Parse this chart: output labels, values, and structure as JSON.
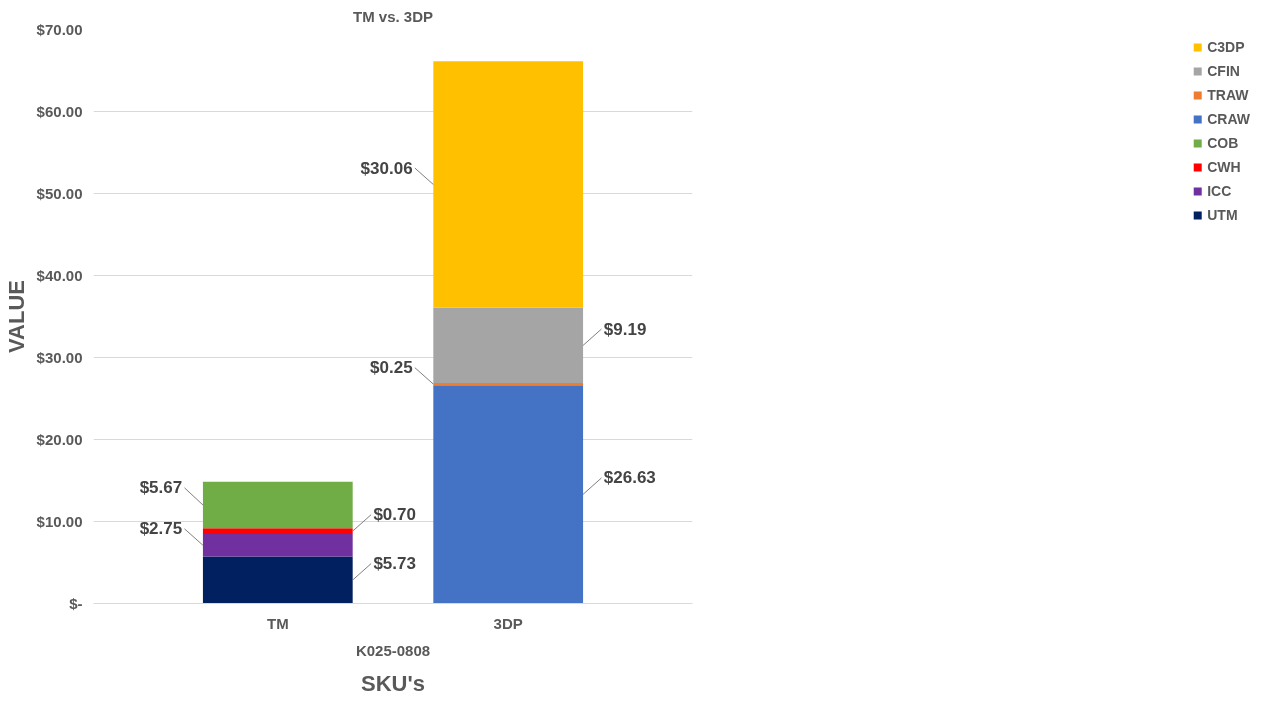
{
  "chart_data": {
    "type": "bar",
    "title": "TM vs. 3DP",
    "xlabel": "SKU's",
    "ylabel": "VALUE",
    "categories": [
      "TM",
      "3DP"
    ],
    "stacked": true,
    "annotations": [
      "K025-0808"
    ],
    "series": [
      {
        "name": "UTM",
        "color": "#002060",
        "values": [
          5.73,
          null
        ],
        "value_labels": [
          "$5.73",
          null
        ]
      },
      {
        "name": "ICC",
        "color": "#7030a0",
        "values": [
          2.75,
          null
        ],
        "value_labels": [
          "$2.75",
          null
        ]
      },
      {
        "name": "CWH",
        "color": "#ff0000",
        "values": [
          0.7,
          null
        ],
        "value_labels": [
          "$0.70",
          null
        ]
      },
      {
        "name": "COB",
        "color": "#70ad47",
        "values": [
          5.67,
          null
        ],
        "value_labels": [
          "$5.67",
          null
        ]
      },
      {
        "name": "CRAW",
        "color": "#4472c4",
        "values": [
          null,
          26.63
        ],
        "value_labels": [
          null,
          "$26.63"
        ]
      },
      {
        "name": "TRAW",
        "color": "#ed7d31",
        "values": [
          null,
          0.25
        ],
        "value_labels": [
          null,
          "$0.25"
        ]
      },
      {
        "name": "CFIN",
        "color": "#a5a5a5",
        "values": [
          null,
          9.19
        ],
        "value_labels": [
          null,
          "$9.19"
        ]
      },
      {
        "name": "C3DP",
        "color": "#ffc000",
        "values": [
          null,
          30.06
        ],
        "value_labels": [
          null,
          "$30.06"
        ]
      }
    ],
    "ylim": [
      0,
      70
    ],
    "yticks": [
      {
        "value": 0,
        "label": "$-"
      },
      {
        "value": 10,
        "label": "$10.00"
      },
      {
        "value": 20,
        "label": "$20.00"
      },
      {
        "value": 30,
        "label": "$30.00"
      },
      {
        "value": 40,
        "label": "$40.00"
      },
      {
        "value": 50,
        "label": "$50.00"
      },
      {
        "value": 60,
        "label": "$60.00"
      },
      {
        "value": 70,
        "label": "$70.00"
      }
    ],
    "grid": "y",
    "legend": "right"
  }
}
